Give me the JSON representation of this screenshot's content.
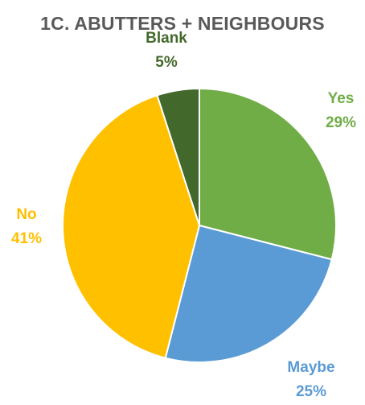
{
  "chart_data": {
    "type": "pie",
    "title": "1C. ABUTTERS + NEIGHBOURS",
    "start_angle_deg": 0,
    "direction": "clockwise",
    "slices": [
      {
        "label": "Yes",
        "value": 29,
        "value_label": "29%",
        "color": "#70AD47"
      },
      {
        "label": "Maybe",
        "value": 25,
        "value_label": "25%",
        "color": "#5B9BD5"
      },
      {
        "label": "No",
        "value": 41,
        "value_label": "41%",
        "color": "#FFC000"
      },
      {
        "label": "Blank",
        "value": 5,
        "value_label": "5%",
        "color": "#43682B"
      }
    ],
    "legend": "none",
    "data_labels": "outside"
  }
}
